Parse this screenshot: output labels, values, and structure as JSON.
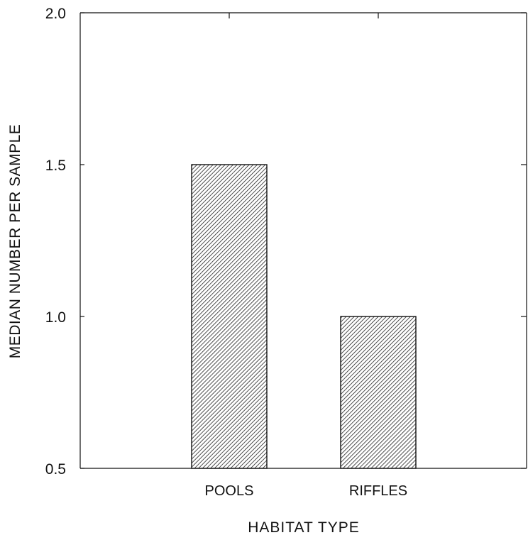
{
  "chart_data": {
    "type": "bar",
    "categories": [
      "POOLS",
      "RIFFLES"
    ],
    "values": [
      1.5,
      1.0
    ],
    "title": "",
    "xlabel": "HABITAT TYPE",
    "ylabel": "MEDIAN NUMBER PER SAMPLE",
    "ylim": [
      0.5,
      2.0
    ],
    "yticks": [
      "0.5",
      "1.0",
      "1.5",
      "2.0"
    ],
    "grid": false,
    "legend": "none",
    "bar_fill": "diagonal-hatch",
    "colors": {
      "axis": "#111111",
      "bar_edge": "#111111",
      "hatch": "#222222",
      "background": "#ffffff"
    }
  }
}
